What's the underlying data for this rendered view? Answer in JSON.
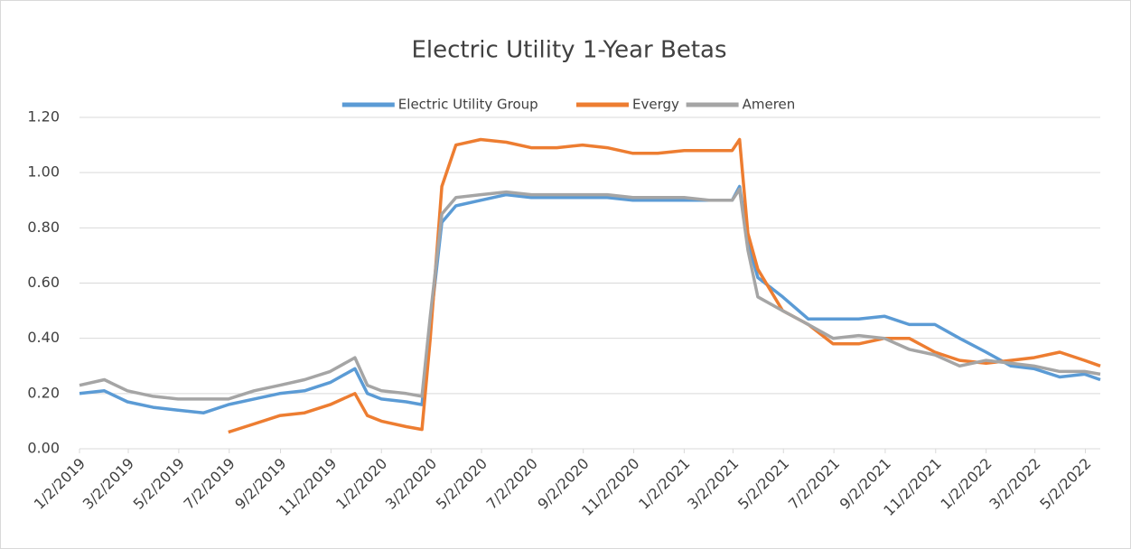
{
  "chart_data": {
    "type": "line",
    "title": "Electric Utility 1-Year Betas",
    "x": [
      "1/2/2019",
      "2/1/2019",
      "3/1/2019",
      "4/1/2019",
      "5/1/2019",
      "6/1/2019",
      "7/1/2019",
      "8/1/2019",
      "9/1/2019",
      "10/1/2019",
      "11/1/2019",
      "12/1/2019",
      "12/16/2019",
      "1/2/2020",
      "2/1/2020",
      "2/20/2020",
      "3/1/2020",
      "3/15/2020",
      "4/1/2020",
      "5/1/2020",
      "6/1/2020",
      "7/1/2020",
      "8/1/2020",
      "9/1/2020",
      "10/1/2020",
      "11/1/2020",
      "12/1/2020",
      "1/2/2021",
      "2/1/2021",
      "3/1/2021",
      "3/10/2021",
      "3/20/2021",
      "4/1/2021",
      "5/1/2021",
      "6/1/2021",
      "7/1/2021",
      "8/1/2021",
      "9/1/2021",
      "10/1/2021",
      "11/1/2021",
      "12/1/2021",
      "1/2/2022",
      "2/1/2022",
      "3/1/2022",
      "4/1/2022",
      "5/1/2022",
      "5/20/2022"
    ],
    "series": [
      {
        "name": "Electric Utility Group",
        "color": "#5b9bd5",
        "values": [
          0.2,
          0.21,
          0.17,
          0.15,
          0.14,
          0.13,
          0.16,
          0.18,
          0.2,
          0.21,
          0.24,
          0.29,
          0.2,
          0.18,
          0.17,
          0.16,
          0.45,
          0.82,
          0.88,
          0.9,
          0.92,
          0.91,
          0.91,
          0.91,
          0.91,
          0.9,
          0.9,
          0.9,
          0.9,
          0.9,
          0.95,
          0.75,
          0.62,
          0.55,
          0.47,
          0.47,
          0.47,
          0.48,
          0.45,
          0.45,
          0.4,
          0.35,
          0.3,
          0.29,
          0.26,
          0.27,
          0.25
        ]
      },
      {
        "name": "Evergy",
        "color": "#ed7d31",
        "values": [
          null,
          null,
          null,
          null,
          null,
          null,
          0.06,
          0.09,
          0.12,
          0.13,
          0.16,
          0.2,
          0.12,
          0.1,
          0.08,
          0.07,
          0.4,
          0.95,
          1.1,
          1.12,
          1.11,
          1.09,
          1.09,
          1.1,
          1.09,
          1.07,
          1.07,
          1.08,
          1.08,
          1.08,
          1.12,
          0.78,
          0.65,
          0.5,
          0.45,
          0.38,
          0.38,
          0.4,
          0.4,
          0.35,
          0.32,
          0.31,
          0.32,
          0.33,
          0.35,
          0.32,
          0.3
        ]
      },
      {
        "name": "Ameren",
        "color": "#a5a5a5",
        "values": [
          0.23,
          0.25,
          0.21,
          0.19,
          0.18,
          0.18,
          0.18,
          0.21,
          0.23,
          0.25,
          0.28,
          0.33,
          0.23,
          0.21,
          0.2,
          0.19,
          0.48,
          0.85,
          0.91,
          0.92,
          0.93,
          0.92,
          0.92,
          0.92,
          0.92,
          0.91,
          0.91,
          0.91,
          0.9,
          0.9,
          0.94,
          0.72,
          0.55,
          0.5,
          0.45,
          0.4,
          0.41,
          0.4,
          0.36,
          0.34,
          0.3,
          0.32,
          0.31,
          0.3,
          0.28,
          0.28,
          0.27
        ]
      }
    ],
    "xlim": [
      "1/2/2019",
      "5/20/2022"
    ],
    "xticks": [
      "1/2/2019",
      "3/2/2019",
      "5/2/2019",
      "7/2/2019",
      "9/2/2019",
      "11/2/2019",
      "1/2/2020",
      "3/2/2020",
      "5/2/2020",
      "7/2/2020",
      "9/2/2020",
      "11/2/2020",
      "1/2/2021",
      "3/2/2021",
      "5/2/2021",
      "7/2/2021",
      "9/2/2021",
      "11/2/2021",
      "1/2/2022",
      "3/2/2022",
      "5/2/2022"
    ],
    "ylim": [
      0,
      1.2
    ],
    "yticks": [
      {
        "value": 0,
        "label": "0.00"
      },
      {
        "value": 0.2,
        "label": "0.20"
      },
      {
        "value": 0.4,
        "label": "0.40"
      },
      {
        "value": 0.6,
        "label": "0.60"
      },
      {
        "value": 0.8,
        "label": "0.80"
      },
      {
        "value": 1,
        "label": "1.00"
      },
      {
        "value": 1.2,
        "label": "1.20"
      }
    ],
    "grid": true,
    "legend": "top"
  }
}
